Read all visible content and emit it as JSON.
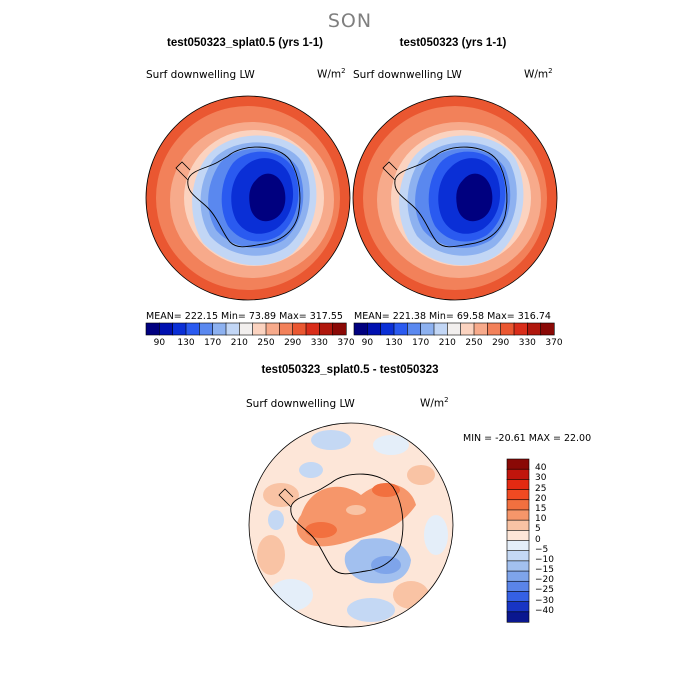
{
  "season": "SON",
  "panels": {
    "left": {
      "title": "test050323_splat0.5 (yrs 1-1)",
      "variable": "Surf downwelling LW",
      "units_base": "W/m",
      "units_exp": "2",
      "stats": "MEAN= 222.15   Min=  73.89   Max= 317.55"
    },
    "right": {
      "title": "test050323 (yrs 1-1)",
      "variable": "Surf downwelling LW",
      "units_base": "W/m",
      "units_exp": "2",
      "stats": "MEAN= 221.38   Min=  69.58   Max= 316.74"
    },
    "diff": {
      "title": "test050323_splat0.5 - test050323",
      "variable": "Surf downwelling LW",
      "units_base": "W/m",
      "units_exp": "2",
      "stats": "MIN = -20.61  MAX =  22.00"
    }
  },
  "colorbar_main": {
    "colors": [
      "#00007f",
      "#0010b0",
      "#0a2fd6",
      "#2a5af0",
      "#5a88ef",
      "#8db1f0",
      "#c2d6f5",
      "#f2efee",
      "#fbd3c0",
      "#f7aa8b",
      "#f2815a",
      "#ea5731",
      "#d92d1a",
      "#b0170d",
      "#8a0906"
    ],
    "tick_labels": [
      "90",
      "130",
      "170",
      "210",
      "250",
      "290",
      "330",
      "370"
    ]
  },
  "colorbar_diff": {
    "colors": [
      "#8a0906",
      "#c0150c",
      "#e32a12",
      "#f04a22",
      "#f2703f",
      "#f6966a",
      "#f9c3a4",
      "#fde6d8",
      "#e4eef9",
      "#c4d8f4",
      "#a2c0ef",
      "#7ea4ea",
      "#5a84e8",
      "#3560e4",
      "#1835c4",
      "#0a178f"
    ],
    "tick_labels": [
      "40",
      "30",
      "25",
      "20",
      "15",
      "10",
      "5",
      "0",
      "−5",
      "−10",
      "−15",
      "−20",
      "−25",
      "−30",
      "−40"
    ]
  }
}
